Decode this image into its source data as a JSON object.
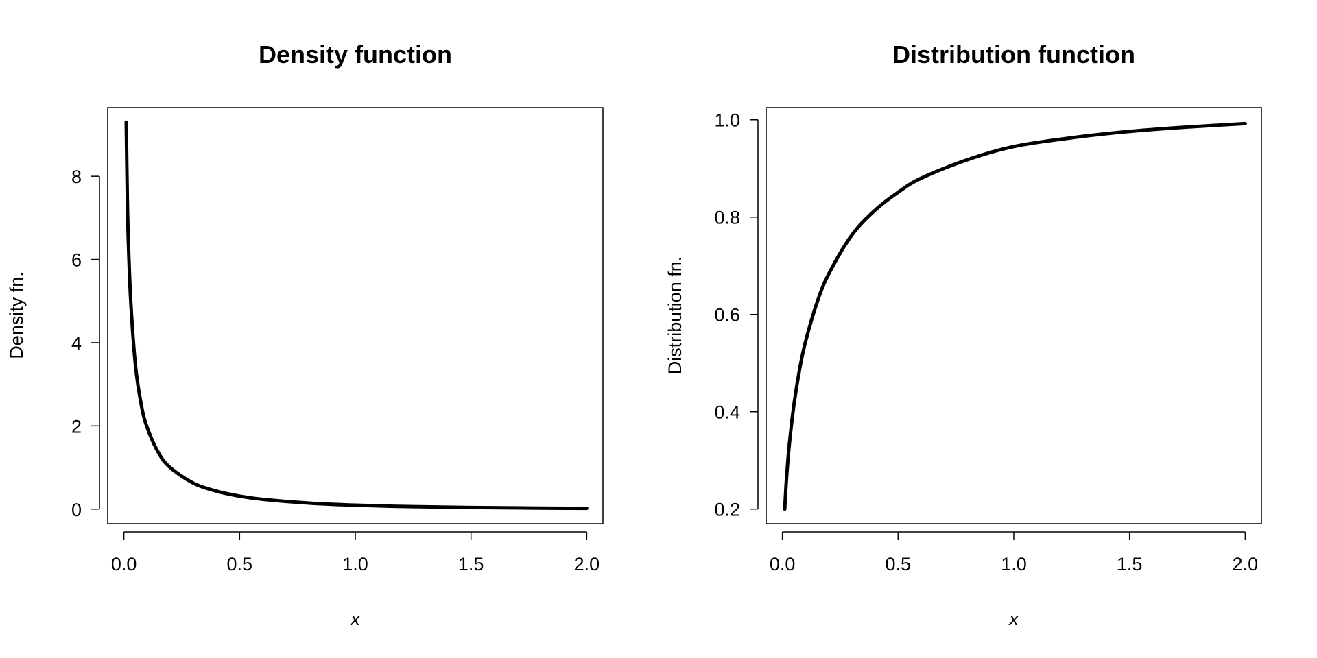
{
  "chart_data": [
    {
      "type": "line",
      "title": "Density function",
      "xlabel": "x",
      "ylabel": "Density fn.",
      "xlim": [
        -0.07,
        2.07
      ],
      "ylim": [
        -0.35,
        9.65
      ],
      "xticks": [
        "0.0",
        "0.5",
        "1.0",
        "1.5",
        "2.0"
      ],
      "yticks": [
        "0",
        "2",
        "4",
        "6",
        "8"
      ],
      "grid": false,
      "color": "#000000",
      "x": [
        0.01,
        0.015,
        0.02,
        0.03,
        0.05,
        0.075,
        0.1,
        0.15,
        0.2,
        0.3,
        0.4,
        0.5,
        0.6,
        0.8,
        1.0,
        1.25,
        1.5,
        1.75,
        2.0
      ],
      "y": [
        9.3,
        7.4,
        6.3,
        4.95,
        3.45,
        2.51,
        1.97,
        1.35,
        1.0,
        0.625,
        0.431,
        0.312,
        0.235,
        0.144,
        0.094,
        0.059,
        0.039,
        0.027,
        0.019
      ]
    },
    {
      "type": "line",
      "title": "Distribution function",
      "xlabel": "x",
      "ylabel": "Distribution fn.",
      "xlim": [
        -0.07,
        2.07
      ],
      "ylim": [
        0.17,
        1.025
      ],
      "xticks": [
        "0.0",
        "0.5",
        "1.0",
        "1.5",
        "2.0"
      ],
      "yticks": [
        "0.2",
        "0.4",
        "0.6",
        "0.8",
        "1.0"
      ],
      "grid": false,
      "color": "#000000",
      "x": [
        0.01,
        0.015,
        0.02,
        0.03,
        0.05,
        0.075,
        0.1,
        0.15,
        0.2,
        0.3,
        0.4,
        0.5,
        0.6,
        0.8,
        1.0,
        1.25,
        1.5,
        1.75,
        2.0
      ],
      "y": [
        0.2,
        0.242,
        0.277,
        0.333,
        0.415,
        0.489,
        0.544,
        0.625,
        0.683,
        0.763,
        0.814,
        0.851,
        0.88,
        0.918,
        0.945,
        0.963,
        0.976,
        0.985,
        0.992
      ]
    }
  ]
}
